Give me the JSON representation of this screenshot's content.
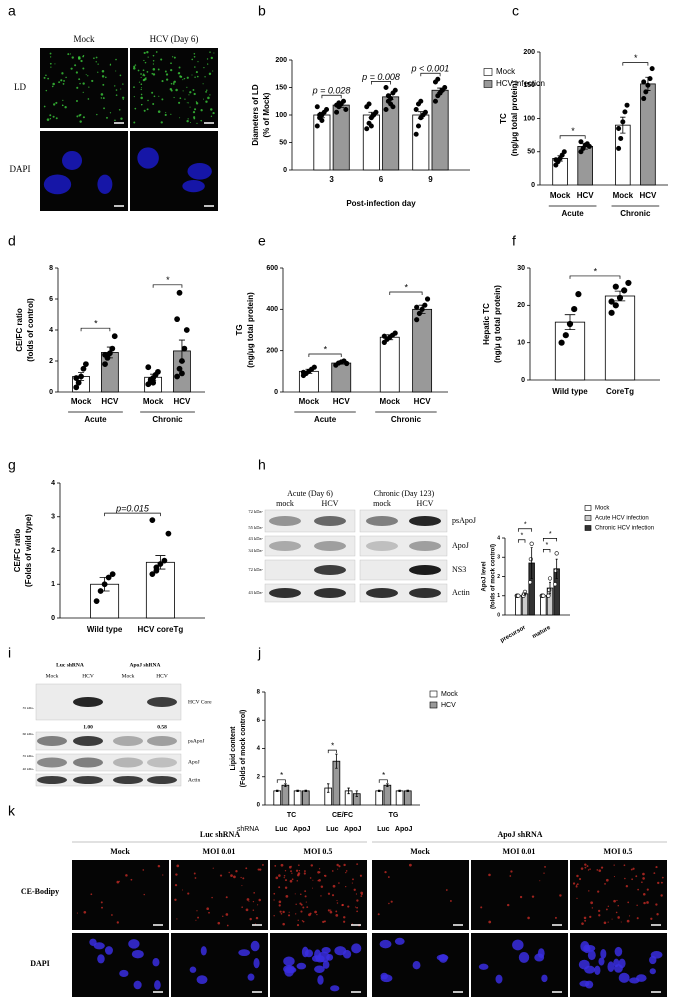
{
  "panel_labels": [
    "a",
    "b",
    "c",
    "d",
    "e",
    "f",
    "g",
    "h",
    "i",
    "j",
    "k"
  ],
  "panel_a": {
    "columns": [
      "Mock",
      "HCV (Day 6)"
    ],
    "rows": [
      "LD",
      "DAPI"
    ]
  },
  "panel_h_blot": {
    "groups": [
      "Acute (Day 6)",
      "Chronic (Day 123)"
    ],
    "lanes": [
      "mock",
      "HCV",
      "mock",
      "HCV"
    ],
    "markers": [
      "72 kDa-",
      "55 kDa-",
      "43 kDa-",
      "34 kDa-",
      "72 kDa-",
      "43 kDa-"
    ],
    "bands": [
      "psApoJ",
      "ApoJ",
      "NS3",
      "Actin"
    ]
  },
  "panel_i_blot": {
    "groups": [
      "Luc shRNA",
      "ApoJ shRNA"
    ],
    "lanes": [
      "Mock",
      "HCV",
      "Mock",
      "HCV"
    ],
    "markers": [
      "35 kDa-",
      "60 kDa-",
      "35 kDa-",
      "40 kDa-"
    ],
    "bands": [
      "HCV Core",
      "psApoJ",
      "ApoJ",
      "Actin"
    ],
    "quantification": [
      "1.00",
      "0.58"
    ]
  },
  "panel_k": {
    "groups": [
      "Luc shRNA",
      "ApoJ shRNA"
    ],
    "columns": [
      "Mock",
      "MOI 0.01",
      "MOI 0.5",
      "Mock",
      "MOI 0.01",
      "MOI 0.5"
    ],
    "rows": [
      "CE-Bodipy",
      "DAPI"
    ]
  },
  "chart_data": [
    {
      "type": "bar",
      "ylabel": [
        "Diameters of LD",
        "(% of Mock)"
      ],
      "xlabel": "Post-infection day",
      "categories": [
        "3",
        "6",
        "9"
      ],
      "ylim": [
        0,
        200
      ],
      "yticks": [
        0,
        50,
        100,
        150,
        200
      ],
      "legend": "upper right",
      "sig": [
        "p = 0.028",
        "p = 0.008",
        "p < 0.001"
      ],
      "series": [
        {
          "name": "Mock",
          "color": "#ffffff",
          "values": [
            100,
            100,
            100
          ],
          "errors": [
            5,
            5,
            6
          ],
          "points": [
            [
              80,
              95,
              100,
              105,
              110,
              115,
              100,
              90
            ],
            [
              75,
              85,
              95,
              100,
              105,
              115,
              120,
              80
            ],
            [
              65,
              80,
              95,
              100,
              105,
              110,
              120,
              125
            ]
          ]
        },
        {
          "name": "HCV infection",
          "color": "#999999",
          "values": [
            118,
            133,
            145
          ],
          "errors": [
            4,
            5,
            4
          ],
          "points": [
            [
              105,
              115,
              120,
              125,
              110,
              118,
              122
            ],
            [
              110,
              125,
              130,
              140,
              145,
              150,
              135,
              120,
              115
            ],
            [
              125,
              135,
              140,
              145,
              150,
              160,
              165,
              140
            ]
          ]
        }
      ]
    },
    {
      "type": "bar",
      "ylabel": [
        "TC",
        "(ng/μg total protein)"
      ],
      "categories": [
        "Mock",
        "HCV",
        "Mock",
        "HCV"
      ],
      "groups": [
        "Acute",
        "Chronic"
      ],
      "ylim": [
        0,
        200
      ],
      "yticks": [
        0,
        50,
        100,
        150,
        200
      ],
      "sig": [
        "*",
        "*"
      ],
      "values": [
        40,
        58,
        90,
        152
      ],
      "errors": [
        4,
        4,
        12,
        10
      ],
      "colors": [
        "#ffffff",
        "#999999",
        "#ffffff",
        "#999999"
      ],
      "points": [
        [
          30,
          35,
          40,
          45,
          50,
          38
        ],
        [
          50,
          55,
          60,
          62,
          58,
          65
        ],
        [
          55,
          70,
          95,
          110,
          120,
          85
        ],
        [
          130,
          140,
          150,
          160,
          175,
          155
        ]
      ]
    },
    {
      "type": "bar",
      "ylabel": [
        "CE/FC ratio",
        "(folds of control)"
      ],
      "categories": [
        "Mock",
        "HCV",
        "Mock",
        "HCV"
      ],
      "groups": [
        "Acute",
        "Chronic"
      ],
      "ylim": [
        0,
        8
      ],
      "yticks": [
        0,
        2,
        4,
        6,
        8
      ],
      "sig": [
        "*",
        "*"
      ],
      "values": [
        1.0,
        2.55,
        0.95,
        2.65
      ],
      "errors": [
        0.25,
        0.35,
        0.2,
        0.7
      ],
      "colors": [
        "#ffffff",
        "#999999",
        "#ffffff",
        "#999999"
      ],
      "points": [
        [
          0.3,
          0.6,
          1.0,
          1.5,
          1.8,
          0.9
        ],
        [
          1.8,
          2.2,
          2.5,
          2.8,
          3.6,
          2.4
        ],
        [
          0.5,
          0.7,
          0.9,
          1.1,
          1.3,
          1.6,
          0.8,
          0.6
        ],
        [
          1.0,
          1.5,
          2.0,
          2.8,
          4.0,
          4.7,
          6.4,
          1.2
        ]
      ]
    },
    {
      "type": "bar",
      "ylabel": [
        "TG",
        "(ng/μg total protein)"
      ],
      "categories": [
        "Mock",
        "HCV",
        "Mock",
        "HCV"
      ],
      "groups": [
        "Acute",
        "Chronic"
      ],
      "ylim": [
        0,
        600
      ],
      "yticks": [
        0,
        200,
        400,
        600
      ],
      "sig": [
        "*",
        "*"
      ],
      "values": [
        100,
        140,
        265,
        400
      ],
      "errors": [
        10,
        5,
        12,
        20
      ],
      "colors": [
        "#ffffff",
        "#999999",
        "#ffffff",
        "#999999"
      ],
      "points": [
        [
          80,
          90,
          100,
          110,
          120,
          95
        ],
        [
          130,
          140,
          145,
          150,
          138
        ],
        [
          240,
          255,
          265,
          275,
          285,
          270
        ],
        [
          350,
          380,
          400,
          420,
          450,
          410
        ]
      ]
    },
    {
      "type": "bar",
      "ylabel": [
        "Hepatic TC",
        "(ng/μ g total protein)"
      ],
      "categories": [
        "Wild type",
        "CoreTg"
      ],
      "ylim": [
        0,
        30
      ],
      "yticks": [
        0,
        10,
        20,
        30
      ],
      "sig": "*",
      "values": [
        15.5,
        22.5
      ],
      "errors": [
        2,
        1.3
      ],
      "colors": [
        "#ffffff",
        "#ffffff"
      ],
      "points": [
        [
          10,
          12,
          15,
          19,
          23
        ],
        [
          18,
          20,
          22,
          24,
          26,
          21,
          25
        ]
      ]
    },
    {
      "type": "bar",
      "ylabel": [
        "CE/FC ratio",
        "(Folds of wild type)"
      ],
      "categories": [
        "Wild type",
        "HCV coreTg"
      ],
      "ylim": [
        0,
        4
      ],
      "yticks": [
        0,
        1,
        2,
        3,
        4
      ],
      "sig": "p=0.015",
      "values": [
        1.0,
        1.65
      ],
      "errors": [
        0.2,
        0.2
      ],
      "colors": [
        "#ffffff",
        "#ffffff"
      ],
      "points": [
        [
          0.5,
          0.8,
          1.0,
          1.2,
          1.3
        ],
        [
          1.3,
          1.4,
          1.6,
          1.7,
          2.5,
          2.9,
          1.5
        ]
      ]
    },
    {
      "type": "bar",
      "ylabel": [
        "ApoJ level",
        "(folds of mock control)"
      ],
      "categories": [
        "precursor",
        "mature"
      ],
      "ylim": [
        0,
        4
      ],
      "yticks": [
        0,
        1,
        2,
        3,
        4
      ],
      "legend": "upper right",
      "sig": [
        [
          "*",
          "*"
        ],
        [
          "*",
          "*"
        ]
      ],
      "series": [
        {
          "name": "Mock",
          "color": "#ffffff",
          "values": [
            1,
            1
          ],
          "errors": [
            0,
            0
          ],
          "points": [
            [
              1,
              1,
              1
            ],
            [
              1,
              1,
              1
            ]
          ]
        },
        {
          "name": "Acute HCV infection",
          "color": "#cccccc",
          "values": [
            1.1,
            1.4
          ],
          "errors": [
            0.05,
            0.3
          ],
          "points": [
            [
              1.0,
              1.1,
              1.2
            ],
            [
              1.0,
              1.3,
              1.9
            ]
          ]
        },
        {
          "name": "Chronic HCV infection",
          "color": "#333333",
          "values": [
            2.7,
            2.4
          ],
          "errors": [
            0.8,
            0.5
          ],
          "points": [
            [
              1.7,
              2.9,
              3.7
            ],
            [
              1.6,
              2.3,
              3.2
            ]
          ]
        }
      ]
    },
    {
      "type": "bar",
      "ylabel": [
        "Lipid content",
        "(Folds of mock control)"
      ],
      "category_label": "shRNA",
      "categories": [
        "Luc",
        "ApoJ",
        "Luc",
        "ApoJ",
        "Luc",
        "ApoJ"
      ],
      "groups": [
        "TC",
        "CE/FC",
        "TG"
      ],
      "ylim": [
        0,
        8
      ],
      "yticks": [
        0,
        2,
        4,
        6,
        8
      ],
      "legend": "upper right",
      "sig": [
        "*",
        null,
        "*",
        null,
        "*",
        null
      ],
      "series": [
        {
          "name": "Mock",
          "color": "#ffffff",
          "values": [
            1,
            1,
            1.2,
            1,
            1,
            1
          ],
          "errors": [
            0.05,
            0.05,
            0.3,
            0.2,
            0.05,
            0.05
          ]
        },
        {
          "name": "HCV",
          "color": "#999999",
          "values": [
            1.4,
            1,
            3.1,
            0.8,
            1.4,
            1
          ],
          "errors": [
            0.1,
            0.05,
            0.5,
            0.2,
            0.1,
            0.05
          ]
        }
      ]
    }
  ]
}
